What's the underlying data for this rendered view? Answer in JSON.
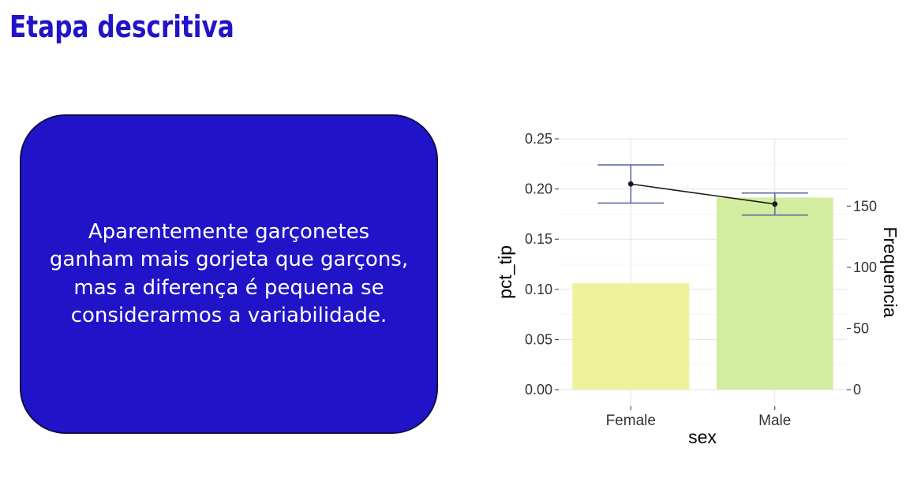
{
  "slide": {
    "title": "Etapa descritiva",
    "callout_text": "Aparentemente garçonetes ganham mais gorjeta que garçons, mas a diferença é pequena se considerarmos a variabilidade.",
    "title_color": "#2114c8",
    "callout_color": "#2114c8"
  },
  "chart_data": {
    "type": "bar",
    "xlabel": "sex",
    "ylabel": "pct_tip",
    "y2label": "Frequencia",
    "categories": [
      "Female",
      "Male"
    ],
    "ylim": [
      0,
      0.25
    ],
    "yticks": [
      "0.00",
      "0.05",
      "0.10",
      "0.15",
      "0.20",
      "0.25"
    ],
    "y2lim": [
      0,
      205
    ],
    "y2ticks": [
      "0",
      "50",
      "100",
      "150"
    ],
    "grid": true,
    "bars": {
      "name": "Frequencia",
      "values": [
        87,
        157
      ],
      "colors": [
        "#eef29a",
        "#d3eda0"
      ]
    },
    "line": {
      "name": "pct_tip",
      "values": [
        0.205,
        0.185
      ],
      "error_low": [
        0.186,
        0.174
      ],
      "error_high": [
        0.224,
        0.196
      ],
      "line_color": "#1a1a1a",
      "error_color": "#5a6c9e"
    }
  }
}
